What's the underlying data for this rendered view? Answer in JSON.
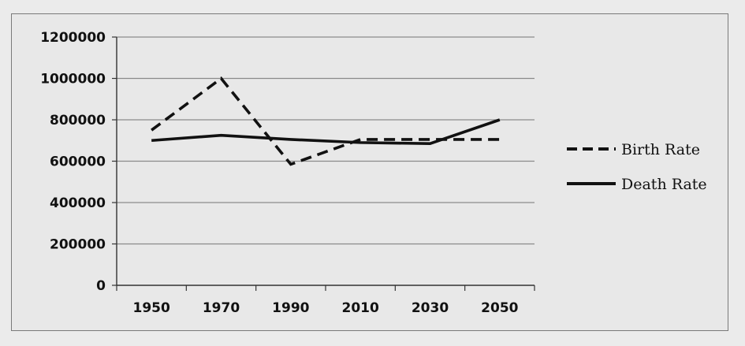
{
  "chart_data": {
    "type": "line",
    "title": "",
    "xlabel": "",
    "ylabel": "",
    "categories": [
      "1950",
      "1970",
      "1990",
      "2010",
      "2030",
      "2050"
    ],
    "y_ticks": [
      "0",
      "200000",
      "400000",
      "600000",
      "800000",
      "1000000",
      "1200000"
    ],
    "ylim": [
      0,
      1200000
    ],
    "grid": true,
    "legend_position": "right",
    "series": [
      {
        "name": "Birth Rate",
        "style": "dashed",
        "color": "#111111",
        "values": [
          750000,
          1000000,
          585000,
          705000,
          705000,
          705000
        ]
      },
      {
        "name": "Death Rate",
        "style": "solid",
        "color": "#111111",
        "values": [
          700000,
          725000,
          705000,
          690000,
          685000,
          800000
        ]
      }
    ]
  }
}
